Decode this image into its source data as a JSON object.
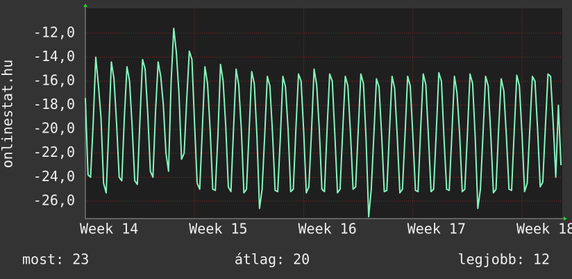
{
  "chart_data": {
    "type": "line",
    "y_label": "onlinestat.hu",
    "x": [
      0,
      4,
      8,
      12,
      16,
      20,
      24,
      28,
      32,
      36,
      40,
      44,
      48,
      52,
      56,
      60,
      64,
      68,
      72,
      76,
      80,
      84,
      88,
      92,
      96,
      100,
      104,
      108,
      112,
      116,
      120,
      124,
      128,
      132,
      136,
      140,
      144,
      148,
      152,
      156,
      160,
      164,
      168,
      172,
      176,
      180,
      184,
      188,
      192,
      196,
      200,
      204,
      208,
      212,
      216,
      220,
      224,
      228,
      232,
      236,
      240,
      244,
      248,
      252,
      256,
      260,
      264,
      268,
      272,
      276,
      280,
      284,
      288,
      292,
      296,
      300,
      304,
      308,
      312,
      316,
      320,
      324,
      328,
      332,
      336,
      340,
      344,
      348,
      352,
      356,
      360,
      364,
      368,
      372,
      376,
      380,
      384,
      388,
      392,
      396,
      400,
      404,
      408,
      412,
      416,
      420,
      424,
      428,
      432,
      436,
      440,
      444,
      448,
      452,
      456,
      460,
      464,
      468,
      472,
      476,
      480,
      484,
      488,
      492,
      496,
      500,
      504,
      508,
      512,
      516,
      520,
      524,
      528,
      532,
      536,
      540,
      544,
      548,
      552,
      556,
      560,
      564,
      568,
      572,
      576,
      580,
      584,
      588,
      592,
      596,
      600,
      604,
      608,
      612,
      616,
      620,
      624,
      628,
      632,
      636,
      640,
      644,
      648,
      652,
      656,
      660,
      664,
      668,
      672,
      676,
      680,
      684,
      688,
      692,
      696,
      700,
      704,
      708,
      712,
      716,
      720,
      724,
      728,
      732
    ],
    "series": [
      {
        "name": "onlinestat.hu",
        "color": "#85f5bd",
        "values": [
          -17.4,
          -23.8,
          -24.0,
          -19.5,
          -14.0,
          -16.3,
          -19.0,
          -24.5,
          -25.3,
          -20.0,
          -14.4,
          -15.8,
          -19.5,
          -24.0,
          -24.3,
          -19.0,
          -14.8,
          -16.0,
          -19.8,
          -24.3,
          -24.6,
          -19.2,
          -14.2,
          -15.0,
          -18.7,
          -23.5,
          -24.0,
          -18.5,
          -14.4,
          -15.6,
          -18.0,
          -22.0,
          -23.5,
          -16.0,
          -11.6,
          -13.6,
          -17.0,
          -22.5,
          -22.0,
          -17.5,
          -13.5,
          -14.2,
          -19.5,
          -24.5,
          -25.0,
          -20.0,
          -14.8,
          -16.2,
          -20.0,
          -25.0,
          -25.1,
          -20.5,
          -14.6,
          -16.0,
          -19.7,
          -24.8,
          -25.2,
          -20.0,
          -15.0,
          -16.3,
          -20.0,
          -25.3,
          -25.0,
          -20.2,
          -15.2,
          -16.2,
          -20.5,
          -26.6,
          -25.0,
          -20.5,
          -15.6,
          -16.4,
          -20.3,
          -25.1,
          -25.2,
          -20.8,
          -15.6,
          -16.5,
          -20.0,
          -25.2,
          -25.0,
          -20.0,
          -15.4,
          -16.0,
          -20.2,
          -25.3,
          -24.8,
          -20.2,
          -15.0,
          -16.3,
          -20.0,
          -25.0,
          -25.2,
          -20.0,
          -15.4,
          -16.0,
          -20.5,
          -25.3,
          -25.0,
          -20.2,
          -15.6,
          -16.4,
          -20.3,
          -25.0,
          -24.8,
          -20.0,
          -15.4,
          -16.2,
          -20.8,
          -27.3,
          -25.0,
          -20.5,
          -15.8,
          -16.5,
          -20.5,
          -25.2,
          -25.1,
          -20.2,
          -15.6,
          -16.6,
          -20.6,
          -25.3,
          -25.0,
          -20.4,
          -15.6,
          -16.4,
          -20.5,
          -25.1,
          -25.2,
          -20.0,
          -15.4,
          -16.3,
          -20.6,
          -25.2,
          -25.0,
          -20.3,
          -15.3,
          -16.0,
          -20.8,
          -25.0,
          -25.1,
          -20.5,
          -15.6,
          -17.0,
          -20.4,
          -25.2,
          -25.0,
          -20.4,
          -15.4,
          -16.2,
          -20.7,
          -26.6,
          -25.0,
          -20.4,
          -15.6,
          -16.4,
          -20.5,
          -25.3,
          -25.0,
          -20.0,
          -15.8,
          -16.8,
          -20.6,
          -25.0,
          -25.1,
          -20.2,
          -15.5,
          -16.4,
          -20.4,
          -25.2,
          -24.5,
          -20.0,
          -15.6,
          -16.0,
          -20.0,
          -24.8,
          -24.4,
          -19.8,
          -15.4,
          -15.6,
          -19.5,
          -24.0,
          -18.0,
          -23.0
        ]
      }
    ],
    "xlim": [
      0,
      734
    ],
    "xticks": [
      {
        "value": 0,
        "label": "Week 14"
      },
      {
        "value": 168,
        "label": "Week 15"
      },
      {
        "value": 336,
        "label": "Week 16"
      },
      {
        "value": 504,
        "label": "Week 17"
      },
      {
        "value": 672,
        "label": "Week 18"
      }
    ],
    "ylim": [
      -27.45,
      -9.93
    ],
    "yticks": [
      {
        "value": -26,
        "label": "-26,0"
      },
      {
        "value": -24,
        "label": "-24,0"
      },
      {
        "value": -22,
        "label": "-22,0"
      },
      {
        "value": -20,
        "label": "-20,0"
      },
      {
        "value": -18,
        "label": "-18,0"
      },
      {
        "value": -16,
        "label": "-16,0"
      },
      {
        "value": -14,
        "label": "-14,0"
      },
      {
        "value": -12,
        "label": "-12,0"
      }
    ],
    "grid": true,
    "summary": [
      "most: 23",
      "átlag: 20",
      "legjobb: 12"
    ]
  }
}
